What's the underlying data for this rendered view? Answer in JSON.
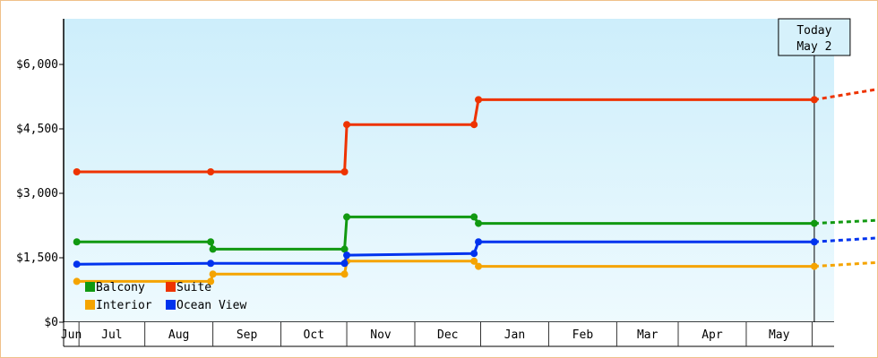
{
  "chart_data": {
    "type": "line",
    "title": "",
    "xlabel": "",
    "ylabel": "",
    "ylim": [
      0,
      6000
    ],
    "yticks": [
      0,
      1500,
      3000,
      4500,
      6000
    ],
    "ytick_labels": [
      "$0",
      "$1,500",
      "$3,000",
      "$4,500",
      "$6,000"
    ],
    "x_axis_labels": [
      "Jun",
      "Jul",
      "Aug",
      "Sep",
      "Oct",
      "Nov",
      "Dec",
      "Jan",
      "Feb",
      "Mar",
      "Apr",
      "May"
    ],
    "today_marker": {
      "line1": "Today",
      "line2": "May 2"
    },
    "legend_placement": "bottom-left",
    "series": [
      {
        "name": "Balcony",
        "color": "#119911",
        "points": [
          {
            "date": "2014-05-31",
            "value": 1870
          },
          {
            "date": "2014-07-31",
            "value": 1870
          },
          {
            "date": "2014-08-01",
            "value": 1700
          },
          {
            "date": "2014-09-30",
            "value": 1700
          },
          {
            "date": "2014-10-01",
            "value": 2450
          },
          {
            "date": "2014-11-28",
            "value": 2450
          },
          {
            "date": "2014-11-30",
            "value": 2300
          },
          {
            "date": "2015-05-02",
            "value": 2300
          }
        ],
        "forecast": [
          {
            "date": "2015-05-02",
            "value": 2300
          },
          {
            "date": "2015-06-03",
            "value": 2380
          }
        ]
      },
      {
        "name": "Suite",
        "color": "#ee3300",
        "points": [
          {
            "date": "2014-05-31",
            "value": 3500
          },
          {
            "date": "2014-07-31",
            "value": 3500
          },
          {
            "date": "2014-09-30",
            "value": 3500
          },
          {
            "date": "2014-10-01",
            "value": 4600
          },
          {
            "date": "2014-11-28",
            "value": 4600
          },
          {
            "date": "2014-11-30",
            "value": 5180
          },
          {
            "date": "2015-05-02",
            "value": 5180
          }
        ],
        "forecast": [
          {
            "date": "2015-05-02",
            "value": 5180
          },
          {
            "date": "2015-06-03",
            "value": 5450
          }
        ]
      },
      {
        "name": "Interior",
        "color": "#f5a400",
        "points": [
          {
            "date": "2014-05-31",
            "value": 950
          },
          {
            "date": "2014-07-31",
            "value": 950
          },
          {
            "date": "2014-08-01",
            "value": 1120
          },
          {
            "date": "2014-09-30",
            "value": 1120
          },
          {
            "date": "2014-10-01",
            "value": 1420
          },
          {
            "date": "2014-11-28",
            "value": 1420
          },
          {
            "date": "2014-11-30",
            "value": 1300
          },
          {
            "date": "2015-05-02",
            "value": 1300
          }
        ],
        "forecast": [
          {
            "date": "2015-05-02",
            "value": 1300
          },
          {
            "date": "2015-06-03",
            "value": 1400
          }
        ]
      },
      {
        "name": "Ocean View",
        "color": "#0033ee",
        "points": [
          {
            "date": "2014-05-31",
            "value": 1350
          },
          {
            "date": "2014-07-31",
            "value": 1370
          },
          {
            "date": "2014-09-30",
            "value": 1370
          },
          {
            "date": "2014-10-01",
            "value": 1560
          },
          {
            "date": "2014-11-28",
            "value": 1600
          },
          {
            "date": "2014-11-30",
            "value": 1870
          },
          {
            "date": "2015-05-02",
            "value": 1870
          }
        ],
        "forecast": [
          {
            "date": "2015-05-02",
            "value": 1870
          },
          {
            "date": "2015-06-03",
            "value": 1970
          }
        ]
      }
    ]
  }
}
